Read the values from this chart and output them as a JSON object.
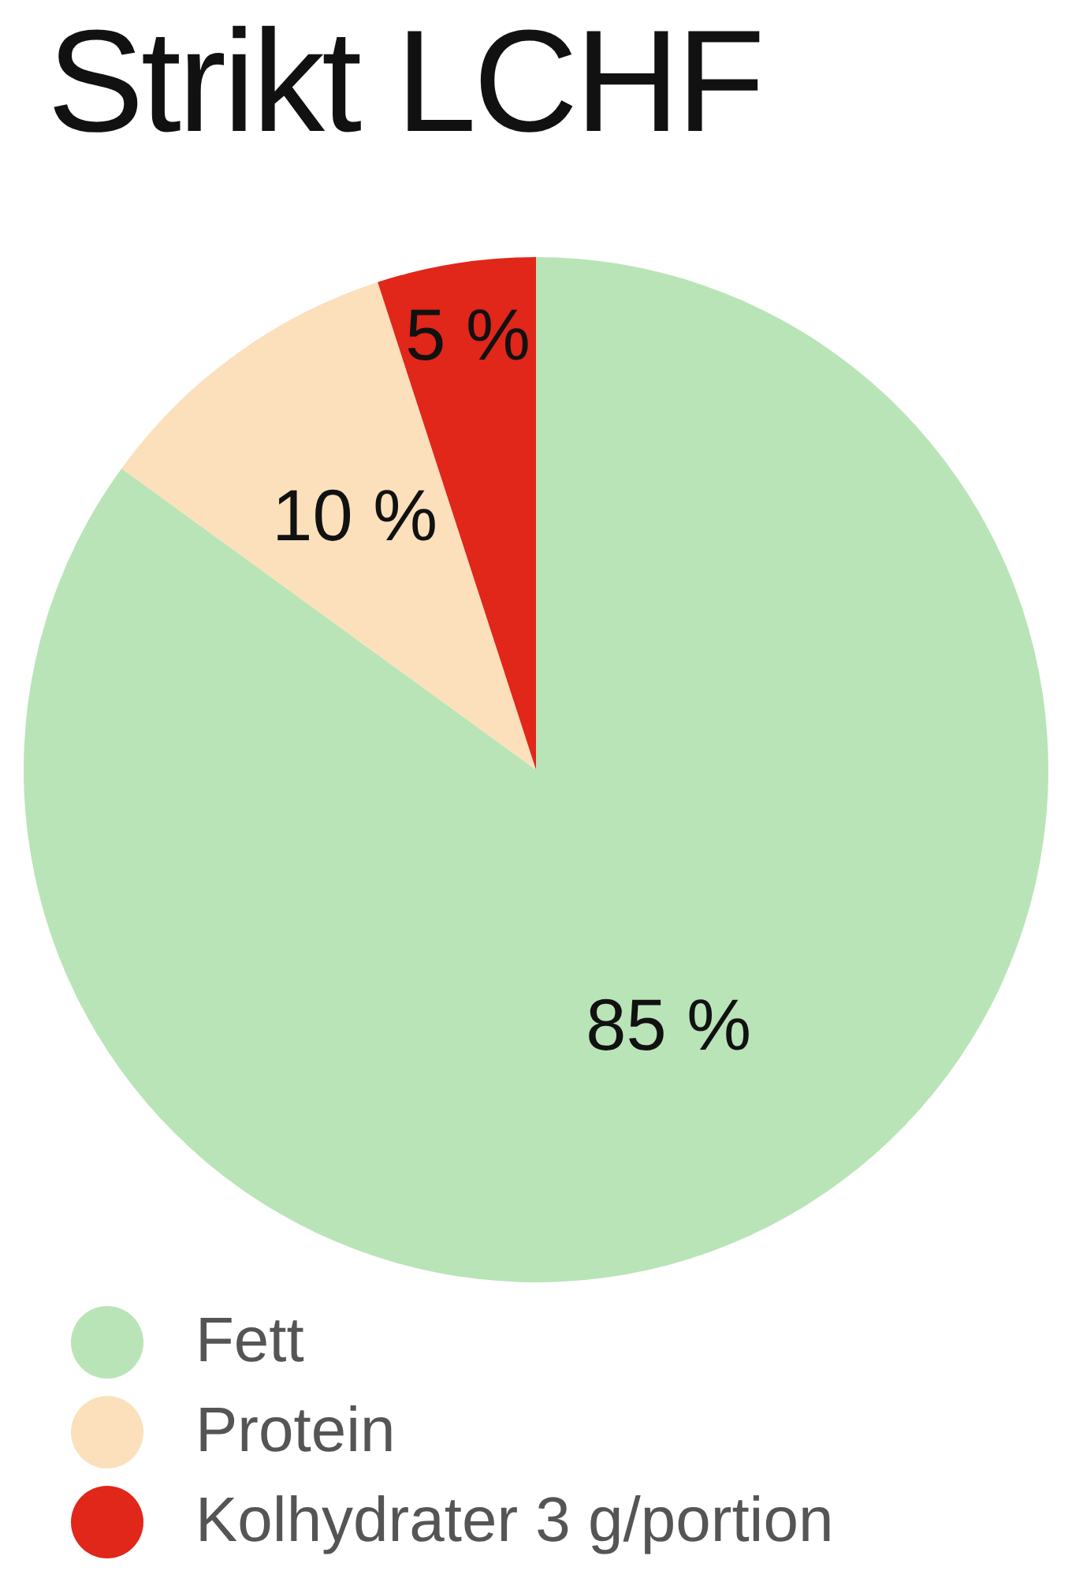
{
  "chart_data": {
    "type": "pie",
    "title": "Strikt LCHF",
    "categories": [
      "Fett",
      "Protein",
      "Kolhydrater 3 g/portion"
    ],
    "values": [
      85,
      10,
      5
    ],
    "colors": [
      "#b9e4b7",
      "#fce0bb",
      "#e1261a"
    ],
    "value_labels": [
      "85 %",
      "10 %",
      "5 %"
    ],
    "legend": "bottom"
  }
}
